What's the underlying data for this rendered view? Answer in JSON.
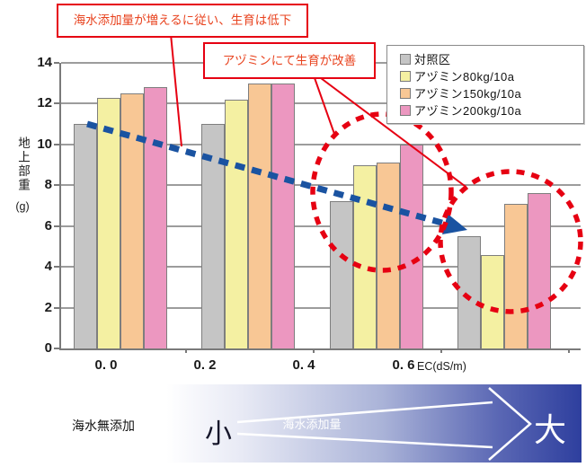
{
  "callouts": {
    "decline": "海水添加量が増えるに従い、生育は低下",
    "improve": "アヅミンにて生育が改善"
  },
  "chart_data": {
    "type": "bar",
    "categories": [
      "0. 0",
      "0. 2",
      "0. 4",
      "0. 6"
    ],
    "x_unit_label": "EC(dS/m)",
    "ylabel": "地上部重",
    "ylabel_unit": "(g)",
    "ylim": [
      0,
      14
    ],
    "yticks": [
      0,
      2,
      4,
      6,
      8,
      10,
      12,
      14
    ],
    "grid": true,
    "legend_position": "top-right",
    "series": [
      {
        "name": "対照区",
        "color": "#c5c5c5",
        "values": [
          11.0,
          11.0,
          7.2,
          5.5
        ]
      },
      {
        "name": "アヅミン80kg/10a",
        "color": "#f4f0a2",
        "values": [
          12.3,
          12.2,
          9.0,
          4.6
        ]
      },
      {
        "name": "アヅミン150kg/10a",
        "color": "#f8c795",
        "values": [
          12.5,
          13.0,
          9.1,
          7.1
        ]
      },
      {
        "name": "アヅミン200kg/10a",
        "color": "#ec97c0",
        "values": [
          12.8,
          13.0,
          10.0,
          7.6
        ]
      }
    ]
  },
  "footer": {
    "no_seawater_label": "海水無添加",
    "scale_small": "小",
    "scale_large": "大",
    "band_label": "海水添加量"
  },
  "colors": {
    "accent_red": "#e60012",
    "callout_text": "#e8431f",
    "trend_blue": "#1a53a1",
    "band_blue_end": "#2e3f9e",
    "axis_gray": "#7a7a7a"
  }
}
